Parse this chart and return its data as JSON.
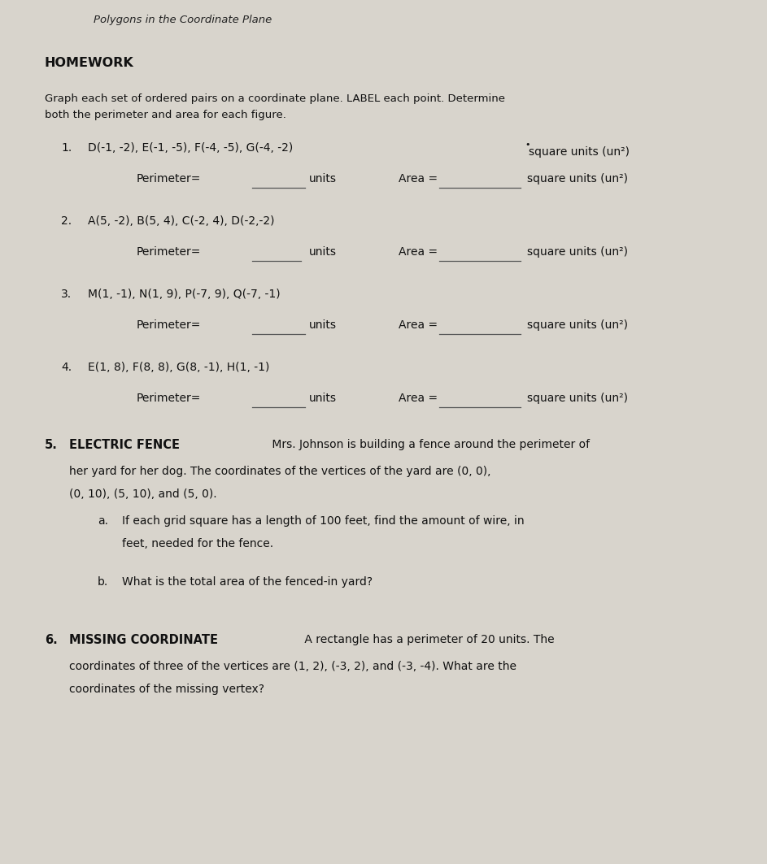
{
  "bg_color": "#d8d4cc",
  "title_top": "Polygons in the Coordinate Plane",
  "section_label": "HOMEWORK",
  "intro_line1": "Graph each set of ordered pairs on a coordinate plane. LABEL each point. Determine",
  "intro_line2": "both the perimeter and area for each figure.",
  "problems": [
    {
      "number": "1.",
      "coords": "D(-1, -2), E(-1, -5), F(-4, -5), G(-4, -2)",
      "perimeter_label": "Perimeter=",
      "units_label": "units",
      "area_label": "Area =",
      "sq_units": "square units (un²)"
    },
    {
      "number": "2.",
      "coords": "A(5, -2), B(5, 4), C(-2, 4), D(-2,-2)",
      "perimeter_label": "Perimeter=",
      "units_label": "units",
      "area_label": "Area =",
      "sq_units": "square units (un²)"
    },
    {
      "number": "3.",
      "coords": "M(1, -1), N(1, 9), P(-7, 9), Q(-7, -1)",
      "perimeter_label": "Perimeter=",
      "units_label": "units",
      "area_label": "Area =",
      "sq_units": "square units (un²)"
    },
    {
      "number": "4.",
      "coords": "E(1, 8), F(8, 8), G(8, -1), H(1, -1)",
      "perimeter_label": "Perimeter=",
      "units_label": "units",
      "area_label": "Area =",
      "sq_units": "square units (un²)"
    }
  ],
  "problem5_number": "5.",
  "problem5_bold": "ELECTRIC FENCE",
  "problem5_text1": " Mrs. Johnson is building a fence around the perimeter of",
  "problem5_text2": "her yard for her dog. The coordinates of the vertices of the yard are (0, 0),",
  "problem5_text3": "(0, 10), (5, 10), and (5, 0).",
  "problem5_a_label": "a.",
  "problem5_a_text": "If each grid square has a length of 100 feet, find the amount of wire, in",
  "problem5_a_text2": "feet, needed for the fence.",
  "problem5_b_label": "b.",
  "problem5_b_text": "What is the total area of the fenced-in yard?",
  "problem6_number": "6.",
  "problem6_bold": "MISSING COORDINATE",
  "problem6_text1": " A rectangle has a perimeter of 20 units. The",
  "problem6_text2": "coordinates of three of the vertices are (1, 2), (-3, 2), and (-3, -4). What are the",
  "problem6_text3": "coordinates of the missing vertex?",
  "line_color": "#333333",
  "blank_line_color": "#555555",
  "text_color": "#111111",
  "title_color": "#222222"
}
